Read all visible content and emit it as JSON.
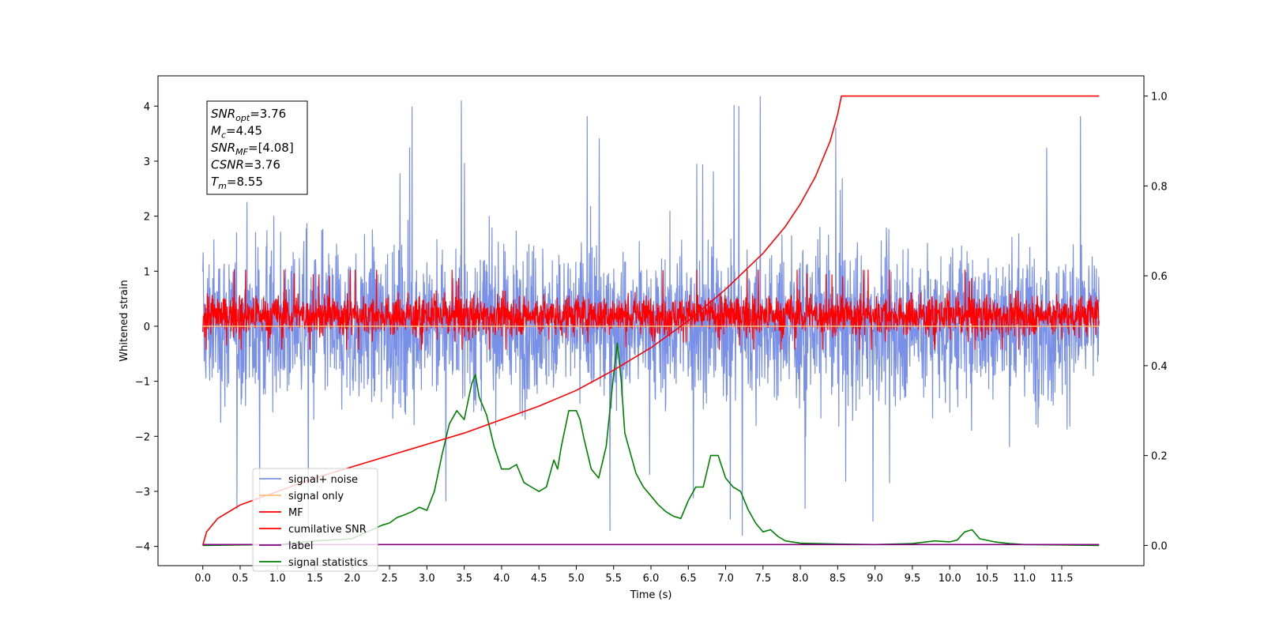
{
  "chart_data": {
    "type": "line",
    "xlabel": "Time (s)",
    "ylabel_left": "Whitened strain",
    "ylabel_right": "",
    "xlim": [
      -0.6,
      12.6
    ],
    "ylim_left": [
      -4.35,
      4.55
    ],
    "ylim_right": [
      -0.045,
      1.045
    ],
    "x_ticks": [
      "0.0",
      "0.5",
      "1.0",
      "1.5",
      "2.0",
      "2.5",
      "3.0",
      "3.5",
      "4.0",
      "4.5",
      "5.0",
      "5.5",
      "6.0",
      "6.5",
      "7.0",
      "7.5",
      "8.0",
      "8.5",
      "9.0",
      "9.5",
      "10.0",
      "10.5",
      "11.0",
      "11.5"
    ],
    "y_ticks_left": [
      "4",
      "3",
      "2",
      "1",
      "0",
      "−1",
      "−2",
      "−3",
      "−4"
    ],
    "y_ticks_right": [
      "1.0",
      "0.8",
      "0.6",
      "0.4",
      "0.2",
      "0.0"
    ],
    "legend_position": "lower left",
    "annotation": {
      "lines": [
        {
          "sym": "SNR",
          "sub": "opt",
          "val": "=3.76"
        },
        {
          "sym": "M",
          "sub": "c",
          "val": "=4.45"
        },
        {
          "sym": "SNR",
          "sub": "MF",
          "val": "=[4.08]"
        },
        {
          "sym": "CSNR",
          "sub": "",
          "val": "=3.76"
        },
        {
          "sym": "T",
          "sub": "m",
          "val": "=8.55"
        }
      ]
    },
    "series": [
      {
        "name": "signal+ noise",
        "axis": "left",
        "color": "#7990e8",
        "kind": "noise",
        "x_range": [
          0,
          12
        ],
        "mean": -0.1,
        "spread": [
          -2.3,
          2.4
        ],
        "extremes": [
          -3.8,
          4.18
        ]
      },
      {
        "name": "signal only",
        "axis": "left",
        "color": "#ffbe7a",
        "kind": "line",
        "x": [
          0,
          12
        ],
        "y": [
          0,
          0
        ]
      },
      {
        "name": "MF",
        "axis": "left",
        "color": "#ff0000",
        "kind": "noise",
        "x_range": [
          0,
          12
        ],
        "mean": 0.0,
        "spread": [
          -0.4,
          0.8
        ],
        "extremes": [
          -0.42,
          1.02
        ]
      },
      {
        "name": "cumilative SNR",
        "axis": "right",
        "color": "#ff0000",
        "kind": "line",
        "x": [
          0.0,
          0.05,
          0.2,
          0.5,
          1.0,
          1.5,
          2.0,
          2.5,
          3.0,
          3.5,
          4.0,
          4.5,
          5.0,
          5.5,
          6.0,
          6.5,
          7.0,
          7.5,
          7.8,
          8.0,
          8.2,
          8.4,
          8.5,
          8.55,
          12.0
        ],
        "y": [
          0.0,
          0.03,
          0.06,
          0.09,
          0.12,
          0.15,
          0.175,
          0.2,
          0.225,
          0.25,
          0.28,
          0.31,
          0.345,
          0.39,
          0.44,
          0.5,
          0.57,
          0.65,
          0.71,
          0.76,
          0.82,
          0.9,
          0.96,
          1.0,
          1.0
        ]
      },
      {
        "name": "label",
        "axis": "right",
        "color": "#800080",
        "kind": "line",
        "x": [
          0,
          12
        ],
        "y": [
          0.002,
          0.002
        ]
      },
      {
        "name": "signal statistics",
        "axis": "right",
        "color": "#008000",
        "kind": "line",
        "x": [
          0.0,
          0.5,
          1.0,
          1.5,
          2.0,
          2.2,
          2.4,
          2.5,
          2.6,
          2.7,
          2.8,
          2.9,
          3.0,
          3.1,
          3.2,
          3.3,
          3.4,
          3.5,
          3.6,
          3.65,
          3.7,
          3.75,
          3.8,
          3.9,
          4.0,
          4.1,
          4.2,
          4.3,
          4.4,
          4.5,
          4.6,
          4.7,
          4.75,
          4.8,
          4.9,
          5.0,
          5.05,
          5.1,
          5.2,
          5.3,
          5.4,
          5.5,
          5.55,
          5.6,
          5.65,
          5.7,
          5.8,
          5.9,
          6.0,
          6.1,
          6.2,
          6.3,
          6.4,
          6.5,
          6.6,
          6.7,
          6.8,
          6.9,
          7.0,
          7.1,
          7.2,
          7.3,
          7.4,
          7.5,
          7.6,
          7.7,
          7.8,
          8.0,
          8.5,
          9.0,
          9.5,
          9.8,
          10.0,
          10.1,
          10.2,
          10.3,
          10.4,
          10.6,
          10.8,
          11.0,
          11.5,
          12.0
        ],
        "y": [
          0.0,
          0.001,
          0.002,
          0.01,
          0.015,
          0.03,
          0.045,
          0.05,
          0.062,
          0.068,
          0.075,
          0.085,
          0.078,
          0.12,
          0.2,
          0.27,
          0.3,
          0.28,
          0.36,
          0.38,
          0.33,
          0.31,
          0.29,
          0.22,
          0.17,
          0.17,
          0.18,
          0.14,
          0.13,
          0.12,
          0.13,
          0.19,
          0.17,
          0.22,
          0.3,
          0.3,
          0.28,
          0.24,
          0.17,
          0.15,
          0.22,
          0.38,
          0.45,
          0.37,
          0.25,
          0.22,
          0.16,
          0.13,
          0.11,
          0.09,
          0.075,
          0.065,
          0.06,
          0.1,
          0.13,
          0.13,
          0.2,
          0.2,
          0.15,
          0.13,
          0.12,
          0.08,
          0.05,
          0.03,
          0.035,
          0.02,
          0.01,
          0.005,
          0.003,
          0.002,
          0.004,
          0.01,
          0.008,
          0.012,
          0.03,
          0.035,
          0.015,
          0.008,
          0.004,
          0.002,
          0.001,
          0.0
        ]
      }
    ]
  }
}
